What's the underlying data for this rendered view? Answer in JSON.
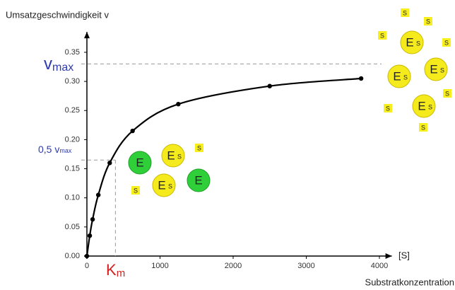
{
  "chart_data": {
    "type": "line",
    "y_title": "Umsatzgeschwindigkeit v",
    "x_title": "[S]",
    "x_subtitle": "Substratkonzentration",
    "x": [
      0,
      39,
      78,
      156,
      312,
      625,
      1250,
      2500,
      3750
    ],
    "values": [
      0,
      0.035,
      0.063,
      0.105,
      0.16,
      0.215,
      0.261,
      0.292,
      0.305
    ],
    "color": "#000000",
    "xlim": [
      0,
      4170
    ],
    "ylim": [
      0,
      0.385
    ],
    "xticks": [
      0,
      1000,
      2000,
      3000,
      4000
    ],
    "yticks": [
      {
        "value": 0,
        "label": "0.00"
      },
      {
        "value": 0.05,
        "label": "0.05"
      },
      {
        "value": 0.1,
        "label": "0.10"
      },
      {
        "value": 0.15,
        "label": "0.15"
      },
      {
        "value": 0.2,
        "label": "0.20"
      },
      {
        "value": 0.25,
        "label": "0.25"
      },
      {
        "value": 0.3,
        "label": "0.30"
      },
      {
        "value": 0.35,
        "label": "0.35"
      }
    ],
    "vmax": 0.33,
    "vmax_label": {
      "main": "v",
      "sub": "max"
    },
    "half_vmax": 0.165,
    "half_vmax_label": {
      "main": "0,5 v",
      "sub": "max"
    },
    "km": 390,
    "km_label": {
      "main": "K",
      "sub": "m"
    },
    "enzyme": "E",
    "substrate": "S"
  }
}
